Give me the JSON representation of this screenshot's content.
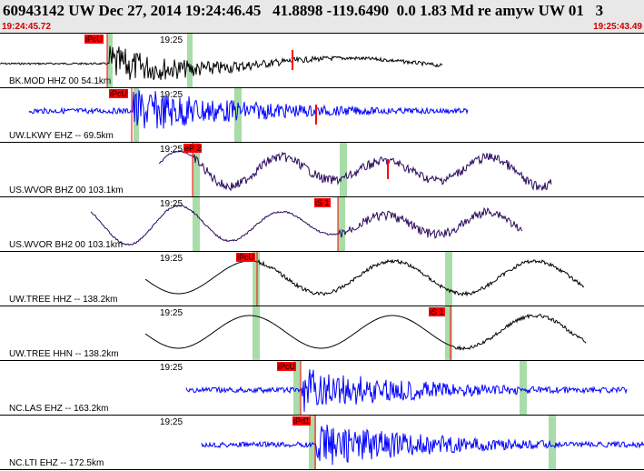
{
  "header": {
    "title": "60943142 UW Dec 27, 2014 19:24:46.45   41.8898 -119.6490  0.0 1.83 Md re amyw UW 01   3",
    "start_time": "19:24:45.72",
    "end_time": "19:25:43.49"
  },
  "colors": {
    "black": "#000000",
    "blue": "#0000ff",
    "purple": "#2b0a5c",
    "pick": "#ff0000",
    "window": "#a8dca8"
  },
  "panels": [
    {
      "channel": "BK.MOD HHZ 00 54.1km",
      "tick": "19:25",
      "pick": "iPcU",
      "color": "black"
    },
    {
      "channel": "UW.LKWY EHZ -- 69.5km",
      "tick": "19:25",
      "pick": "iPcU",
      "color": "blue"
    },
    {
      "channel": "US.WVOR BHZ 00 103.1km",
      "tick": "19:25",
      "pick": "eP 2",
      "color": "purple"
    },
    {
      "channel": "US.WVOR BH2 00 103.1km",
      "tick": "19:25",
      "pick": "iS 1",
      "color": "purple"
    },
    {
      "channel": "UW.TREE HHZ -- 138.2km",
      "tick": "19:25",
      "pick": "iPcU",
      "color": "black"
    },
    {
      "channel": "UW.TREE HHN -- 138.2km",
      "tick": "19:25",
      "pick": "iS 1",
      "color": "black"
    },
    {
      "channel": "NC.LAS EHZ -- 163.2km",
      "tick": "19:25",
      "pick": "iPcU",
      "color": "blue"
    },
    {
      "channel": "NC.LTI EHZ -- 172.5km",
      "tick": "19:25",
      "pick": "iPd1",
      "color": "blue"
    }
  ]
}
